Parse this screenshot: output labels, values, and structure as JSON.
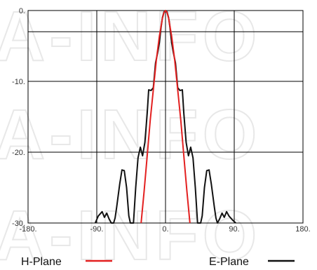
{
  "chart_data": {
    "type": "line",
    "title": "",
    "xlabel": "",
    "ylabel": "",
    "xlim": [
      -180,
      180
    ],
    "ylim": [
      -30,
      0
    ],
    "x_ticks": [
      -180,
      -90,
      0,
      90,
      180
    ],
    "x_tick_labels": [
      "-180.",
      "-90.",
      "0.",
      "90.",
      "180."
    ],
    "y_ticks": [
      0,
      -10,
      -20,
      -30
    ],
    "y_tick_labels": [
      "0.",
      "-10.",
      "-20.",
      "-30."
    ],
    "grid": true,
    "legend": "bottom",
    "watermark": "A-INFO",
    "series": [
      {
        "name": "H-Plane",
        "color": "#e32020",
        "x": [
          -32,
          -28,
          -24,
          -20,
          -16,
          -12,
          -8,
          -4,
          -2,
          0,
          2,
          4,
          8,
          12,
          16,
          20,
          24,
          28,
          32
        ],
        "y": [
          -30,
          -25.5,
          -20.5,
          -15.5,
          -11.2,
          -7,
          -3.6,
          -1.1,
          -0.3,
          0,
          -0.3,
          -1.1,
          -3.6,
          -7,
          -11.2,
          -15.5,
          -20.5,
          -25.5,
          -30
        ]
      },
      {
        "name": "E-Plane",
        "color": "#111111",
        "x": [
          -92,
          -88,
          -83,
          -80,
          -77,
          -74,
          -71,
          -68,
          -66,
          -64,
          -60,
          -57,
          -54,
          -51,
          -48,
          -46,
          -42,
          -39,
          -36,
          -33,
          -30,
          -27,
          -24,
          -22,
          -19,
          -16,
          -13,
          -10,
          -8,
          -6,
          -4,
          -2,
          0,
          2,
          4,
          6,
          8,
          10,
          13,
          16,
          19,
          22,
          24,
          27,
          30,
          33,
          36,
          39,
          42,
          46,
          48,
          51,
          54,
          57,
          60,
          64,
          66,
          68,
          71,
          74,
          77,
          80,
          83,
          88,
          92
        ],
        "y": [
          -30,
          -29,
          -28.4,
          -29.2,
          -28.6,
          -29.4,
          -30,
          -30,
          -29.3,
          -27.8,
          -24.5,
          -22.5,
          -22.6,
          -25,
          -29,
          -30,
          -30,
          -25,
          -20.8,
          -19.3,
          -20.5,
          -18.6,
          -14.5,
          -11.2,
          -11.3,
          -10.9,
          -7.4,
          -5.8,
          -4.5,
          -2.5,
          -1,
          -0.2,
          0,
          -0.2,
          -1,
          -2.5,
          -4.5,
          -5.8,
          -7.4,
          -10.9,
          -11.3,
          -11.2,
          -14.5,
          -18.6,
          -20.5,
          -19.3,
          -20.8,
          -25,
          -30,
          -30,
          -29,
          -25,
          -22.6,
          -22.5,
          -24.5,
          -27.8,
          -29.3,
          -30,
          -29.4,
          -28.6,
          -29.2,
          -28.4,
          -29,
          -29.6,
          -30
        ]
      }
    ]
  },
  "legend": {
    "h_plane_label": "H-Plane",
    "e_plane_label": "E-Plane"
  }
}
